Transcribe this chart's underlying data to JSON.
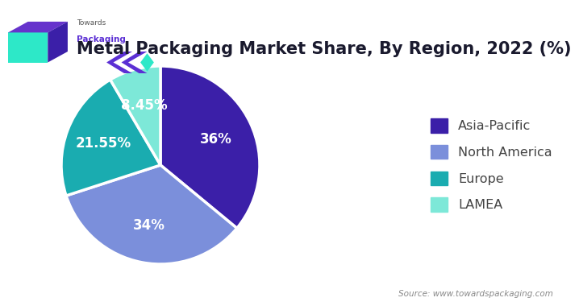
{
  "title": "Metal Packaging Market Share, By Region, 2022 (%)",
  "segments": [
    "Asia-Pacific",
    "North America",
    "Europe",
    "LAMEA"
  ],
  "values": [
    36,
    34,
    21.55,
    8.45
  ],
  "colors": [
    "#3b1fa8",
    "#7b8fdb",
    "#1aacb0",
    "#7de8d8"
  ],
  "labels": [
    "36%",
    "34%",
    "21.55%",
    "8.45%"
  ],
  "legend_labels": [
    "Asia-Pacific",
    "North America",
    "Europe",
    "LAMEA"
  ],
  "legend_colors": [
    "#3b1fa8",
    "#7b8fdb",
    "#1aacb0",
    "#7de8d8"
  ],
  "source_text": "Source: www.towardspackaging.com",
  "background_color": "#ffffff",
  "label_color": "#ffffff",
  "label_fontsize": 12,
  "title_fontsize": 15,
  "teal_color": "#2de8c8",
  "purple_color": "#5b2fd4",
  "line_color": "#2de8c8"
}
